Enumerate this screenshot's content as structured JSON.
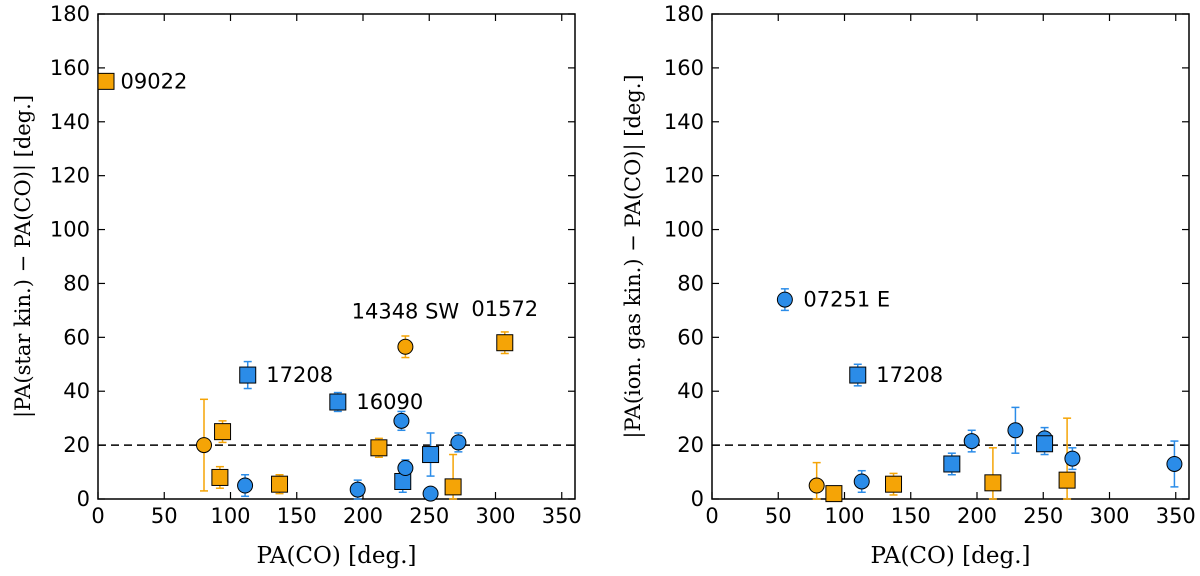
{
  "colors": {
    "blue": "#2b8ce8",
    "orange": "#f5a406",
    "edge": "#000000",
    "dashed_line": "#000000"
  },
  "chart_data": [
    {
      "type": "scatter",
      "xlabel": "PA(CO) [deg.]",
      "ylabel": "|PA(star kin.) − PA(CO)| [deg.]",
      "xlim": [
        0,
        360
      ],
      "ylim": [
        0,
        180
      ],
      "xticks": [
        "0",
        "50",
        "100",
        "150",
        "200",
        "250",
        "300",
        "350"
      ],
      "yticks": [
        "0",
        "20",
        "40",
        "60",
        "80",
        "100",
        "120",
        "140",
        "160",
        "180"
      ],
      "reference_line": {
        "y": 20,
        "style": "dashed"
      },
      "points": [
        {
          "x": 80,
          "y": 20,
          "err_lo": 17,
          "err_hi": 17,
          "marker": "circle",
          "color": "orange"
        },
        {
          "x": 92,
          "y": 8,
          "err_lo": 4,
          "err_hi": 4,
          "marker": "square",
          "color": "orange"
        },
        {
          "x": 94,
          "y": 25,
          "err_lo": 4,
          "err_hi": 4,
          "marker": "square",
          "color": "orange"
        },
        {
          "x": 111,
          "y": 5,
          "err_lo": 4,
          "err_hi": 4,
          "marker": "circle",
          "color": "blue"
        },
        {
          "x": 113,
          "y": 46,
          "err_lo": 5,
          "err_hi": 5,
          "marker": "square",
          "color": "blue",
          "label": "17208"
        },
        {
          "x": 137,
          "y": 5.5,
          "err_lo": 3.5,
          "err_hi": 3.5,
          "marker": "square",
          "color": "orange"
        },
        {
          "x": 181,
          "y": 36,
          "err_lo": 3.5,
          "err_hi": 3.5,
          "marker": "square",
          "color": "blue",
          "label": "16090"
        },
        {
          "x": 196,
          "y": 3.5,
          "err_lo": 3.5,
          "err_hi": 3.5,
          "marker": "circle",
          "color": "blue"
        },
        {
          "x": 212,
          "y": 19,
          "err_lo": 3.5,
          "err_hi": 3.5,
          "marker": "square",
          "color": "orange"
        },
        {
          "x": 229,
          "y": 29,
          "err_lo": 3.5,
          "err_hi": 3.5,
          "marker": "circle",
          "color": "blue"
        },
        {
          "x": 230,
          "y": 6.5,
          "err_lo": 4,
          "err_hi": 4,
          "marker": "square",
          "color": "blue"
        },
        {
          "x": 232,
          "y": 11.5,
          "err_lo": 3,
          "err_hi": 3,
          "marker": "circle",
          "color": "blue"
        },
        {
          "x": 232,
          "y": 56.5,
          "err_lo": 4,
          "err_hi": 4,
          "marker": "circle",
          "color": "orange",
          "label": "14348 SW"
        },
        {
          "x": 251,
          "y": 16.5,
          "err_lo": 8,
          "err_hi": 8,
          "marker": "square",
          "color": "blue"
        },
        {
          "x": 251,
          "y": 2,
          "err_lo": 2,
          "err_hi": 2,
          "marker": "circle",
          "color": "blue"
        },
        {
          "x": 268,
          "y": 4.5,
          "err_lo": 4.5,
          "err_hi": 12,
          "marker": "square",
          "color": "orange"
        },
        {
          "x": 272,
          "y": 21,
          "err_lo": 3.5,
          "err_hi": 3.5,
          "marker": "circle",
          "color": "blue"
        },
        {
          "x": 307,
          "y": 58,
          "err_lo": 4,
          "err_hi": 4,
          "marker": "square",
          "color": "orange",
          "label": "01572"
        },
        {
          "x": 2,
          "y": 155,
          "err_lo": 0,
          "err_hi": 0,
          "marker": "square",
          "color": "orange",
          "label": "09022"
        }
      ],
      "annotations": [
        {
          "text": "09022",
          "x": 17,
          "y": 155,
          "anchor": "start",
          "baseline": "middle"
        },
        {
          "text": "17208",
          "x": 127,
          "y": 46,
          "anchor": "start",
          "baseline": "middle"
        },
        {
          "text": "16090",
          "x": 195,
          "y": 36,
          "anchor": "start",
          "baseline": "middle"
        },
        {
          "text": "14348 SW",
          "x": 232,
          "y": 67,
          "anchor": "middle",
          "baseline": "bottom"
        },
        {
          "text": "01572",
          "x": 307,
          "y": 68,
          "anchor": "middle",
          "baseline": "bottom"
        }
      ]
    },
    {
      "type": "scatter",
      "xlabel": "PA(CO) [deg.]",
      "ylabel": "|PA(ion. gas kin.) − PA(CO)| [deg.]",
      "xlim": [
        0,
        360
      ],
      "ylim": [
        0,
        180
      ],
      "xticks": [
        "0",
        "50",
        "100",
        "150",
        "200",
        "250",
        "300",
        "350"
      ],
      "yticks": [
        "0",
        "20",
        "40",
        "60",
        "80",
        "100",
        "120",
        "140",
        "160",
        "180"
      ],
      "reference_line": {
        "y": 20,
        "style": "dashed"
      },
      "points": [
        {
          "x": 55,
          "y": 74,
          "err_lo": 4,
          "err_hi": 4,
          "marker": "circle",
          "color": "blue",
          "label": "07251 E"
        },
        {
          "x": 79,
          "y": 5,
          "err_lo": 5,
          "err_hi": 8.5,
          "marker": "circle",
          "color": "orange"
        },
        {
          "x": 92,
          "y": 2,
          "err_lo": 2,
          "err_hi": 2.5,
          "marker": "square",
          "color": "orange"
        },
        {
          "x": 110,
          "y": 46,
          "err_lo": 4,
          "err_hi": 4,
          "marker": "square",
          "color": "blue",
          "label": "17208"
        },
        {
          "x": 113,
          "y": 6.5,
          "err_lo": 4,
          "err_hi": 4,
          "marker": "circle",
          "color": "blue"
        },
        {
          "x": 137,
          "y": 5.5,
          "err_lo": 4,
          "err_hi": 4,
          "marker": "square",
          "color": "orange"
        },
        {
          "x": 181,
          "y": 13,
          "err_lo": 4,
          "err_hi": 4,
          "marker": "square",
          "color": "blue"
        },
        {
          "x": 196,
          "y": 21.5,
          "err_lo": 4,
          "err_hi": 4,
          "marker": "circle",
          "color": "blue"
        },
        {
          "x": 212,
          "y": 6,
          "err_lo": 6,
          "err_hi": 13,
          "marker": "square",
          "color": "orange"
        },
        {
          "x": 229,
          "y": 25.5,
          "err_lo": 8.5,
          "err_hi": 8.5,
          "marker": "circle",
          "color": "blue"
        },
        {
          "x": 251,
          "y": 22.5,
          "err_lo": 4,
          "err_hi": 4,
          "marker": "circle",
          "color": "blue"
        },
        {
          "x": 251,
          "y": 20.5,
          "err_lo": 4,
          "err_hi": 4,
          "marker": "square",
          "color": "blue"
        },
        {
          "x": 268,
          "y": 7,
          "err_lo": 7,
          "err_hi": 23,
          "marker": "square",
          "color": "orange"
        },
        {
          "x": 272,
          "y": 15,
          "err_lo": 4,
          "err_hi": 4,
          "marker": "circle",
          "color": "blue"
        },
        {
          "x": 349,
          "y": 13,
          "err_lo": 8.5,
          "err_hi": 8.5,
          "marker": "circle",
          "color": "blue"
        }
      ],
      "annotations": [
        {
          "text": "07251 E",
          "x": 69,
          "y": 74,
          "anchor": "start",
          "baseline": "middle"
        },
        {
          "text": "17208",
          "x": 124,
          "y": 46,
          "anchor": "start",
          "baseline": "middle"
        }
      ]
    }
  ]
}
